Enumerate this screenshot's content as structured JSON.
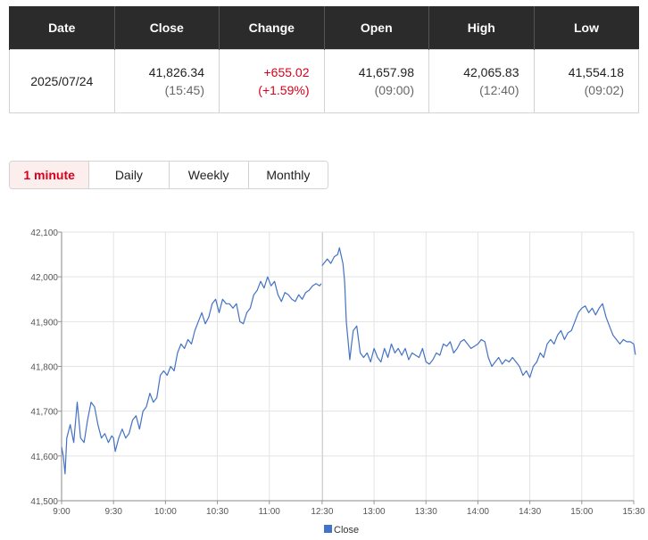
{
  "summary": {
    "headers": [
      "Date",
      "Close",
      "Change",
      "Open",
      "High",
      "Low"
    ],
    "date": "2025/07/24",
    "close": "41,826.34",
    "close_time": "(15:45)",
    "change": "+655.02",
    "change_pct": "(+1.59%)",
    "open": "41,657.98",
    "open_time": "(09:00)",
    "high": "42,065.83",
    "high_time": "(12:40)",
    "low": "41,554.18",
    "low_time": "(09:02)"
  },
  "tabs": [
    "1 minute",
    "Daily",
    "Weekly",
    "Monthly"
  ],
  "active_tab": "1 minute",
  "colors": {
    "line": "#4472c4",
    "up": "#d6001c",
    "header_bg": "#2b2b2b",
    "grid": "#e3e3e3"
  },
  "chart_data": {
    "type": "line",
    "title": "",
    "xlabel": "",
    "ylabel": "",
    "xticks": [
      "9:00",
      "9:30",
      "10:00",
      "10:30",
      "11:00",
      "12:30",
      "13:00",
      "13:30",
      "14:00",
      "14:30",
      "15:00",
      "15:30"
    ],
    "yticks": [
      41500,
      41600,
      41700,
      41800,
      41900,
      42000,
      42100
    ],
    "ytick_labels": [
      "41,500",
      "41,600",
      "41,700",
      "41,800",
      "41,900",
      "42,000",
      "42,100"
    ],
    "ylim": [
      41500,
      42100
    ],
    "grid": true,
    "legend": [
      "Close"
    ],
    "legend_position": "bottom",
    "series": [
      {
        "name": "Close",
        "sessions": [
          {
            "x": [
              "9:00",
              "9:01",
              "9:02",
              "9:03",
              "9:05",
              "9:07",
              "9:09",
              "9:11",
              "9:13",
              "9:15",
              "9:17",
              "9:19",
              "9:21",
              "9:23",
              "9:25",
              "9:27",
              "9:29",
              "9:30",
              "9:31",
              "9:33",
              "9:35",
              "9:37",
              "9:39",
              "9:41",
              "9:43",
              "9:45",
              "9:47",
              "9:49",
              "9:51",
              "9:53",
              "9:55",
              "9:57",
              "9:59",
              "10:01",
              "10:03",
              "10:05",
              "10:07",
              "10:09",
              "10:11",
              "10:13",
              "10:15",
              "10:17",
              "10:19",
              "10:21",
              "10:23",
              "10:25",
              "10:27",
              "10:29",
              "10:31",
              "10:33",
              "10:35",
              "10:37",
              "10:39",
              "10:41",
              "10:43",
              "10:45",
              "10:47",
              "10:49",
              "10:51",
              "10:53",
              "10:55",
              "10:57",
              "10:59",
              "11:01",
              "11:03",
              "11:05",
              "11:07",
              "11:09",
              "11:11",
              "11:13",
              "11:15",
              "11:17",
              "11:19",
              "11:21",
              "11:23",
              "11:25",
              "11:27",
              "11:29",
              "11:30"
            ],
            "y": [
              41620,
              41600,
              41560,
              41640,
              41670,
              41630,
              41720,
              41640,
              41630,
              41680,
              41720,
              41710,
              41670,
              41640,
              41650,
              41630,
              41645,
              41640,
              41610,
              41640,
              41660,
              41640,
              41650,
              41680,
              41690,
              41660,
              41700,
              41710,
              41740,
              41720,
              41730,
              41780,
              41790,
              41780,
              41800,
              41790,
              41830,
              41850,
              41840,
              41860,
              41850,
              41880,
              41900,
              41920,
              41895,
              41910,
              41940,
              41950,
              41920,
              41950,
              41940,
              41940,
              41930,
              41940,
              41900,
              41895,
              41920,
              41930,
              41960,
              41970,
              41990,
              41975,
              42000,
              41980,
              41990,
              41960,
              41945,
              41965,
              41960,
              41950,
              41945,
              41960,
              41950,
              41965,
              41970,
              41980,
              41985,
              41980,
              41985
            ]
          },
          {
            "x": [
              "12:30",
              "12:31",
              "12:33",
              "12:35",
              "12:37",
              "12:39",
              "12:40",
              "12:42",
              "12:43",
              "12:44",
              "12:46",
              "12:47",
              "12:48",
              "12:50",
              "12:52",
              "12:54",
              "12:56",
              "12:58",
              "13:00",
              "13:02",
              "13:04",
              "13:06",
              "13:08",
              "13:10",
              "13:12",
              "13:14",
              "13:16",
              "13:18",
              "13:20",
              "13:22",
              "13:24",
              "13:26",
              "13:28",
              "13:30",
              "13:32",
              "13:34",
              "13:36",
              "13:38",
              "13:40",
              "13:42",
              "13:44",
              "13:46",
              "13:48",
              "13:50",
              "13:52",
              "13:54",
              "13:56",
              "13:58",
              "14:00",
              "14:02",
              "14:04",
              "14:06",
              "14:08",
              "14:10",
              "14:12",
              "14:14",
              "14:16",
              "14:18",
              "14:20",
              "14:22",
              "14:24",
              "14:26",
              "14:28",
              "14:30",
              "14:32",
              "14:34",
              "14:36",
              "14:38",
              "14:40",
              "14:42",
              "14:44",
              "14:46",
              "14:48",
              "14:50",
              "14:52",
              "14:54",
              "14:56",
              "14:58",
              "15:00",
              "15:02",
              "15:04",
              "15:06",
              "15:08",
              "15:10",
              "15:12",
              "15:14",
              "15:16",
              "15:18",
              "15:20",
              "15:22",
              "15:24",
              "15:26",
              "15:28",
              "15:30",
              "15:31"
            ],
            "y": [
              42025,
              42030,
              42040,
              42030,
              42045,
              42050,
              42065,
              42030,
              41990,
              41900,
              41815,
              41850,
              41880,
              41890,
              41830,
              41820,
              41830,
              41810,
              41840,
              41820,
              41810,
              41840,
              41820,
              41850,
              41830,
              41840,
              41825,
              41840,
              41815,
              41830,
              41825,
              41820,
              41840,
              41810,
              41805,
              41815,
              41830,
              41825,
              41850,
              41845,
              41855,
              41830,
              41840,
              41855,
              41860,
              41850,
              41840,
              41845,
              41850,
              41860,
              41855,
              41820,
              41800,
              41810,
              41820,
              41805,
              41815,
              41810,
              41820,
              41810,
              41800,
              41780,
              41790,
              41775,
              41800,
              41810,
              41830,
              41820,
              41850,
              41860,
              41850,
              41870,
              41880,
              41860,
              41875,
              41880,
              41900,
              41920,
              41930,
              41935,
              41920,
              41930,
              41915,
              41930,
              41940,
              41910,
              41890,
              41870,
              41860,
              41850,
              41860,
              41855,
              41855,
              41850,
              41826
            ]
          }
        ]
      }
    ]
  }
}
